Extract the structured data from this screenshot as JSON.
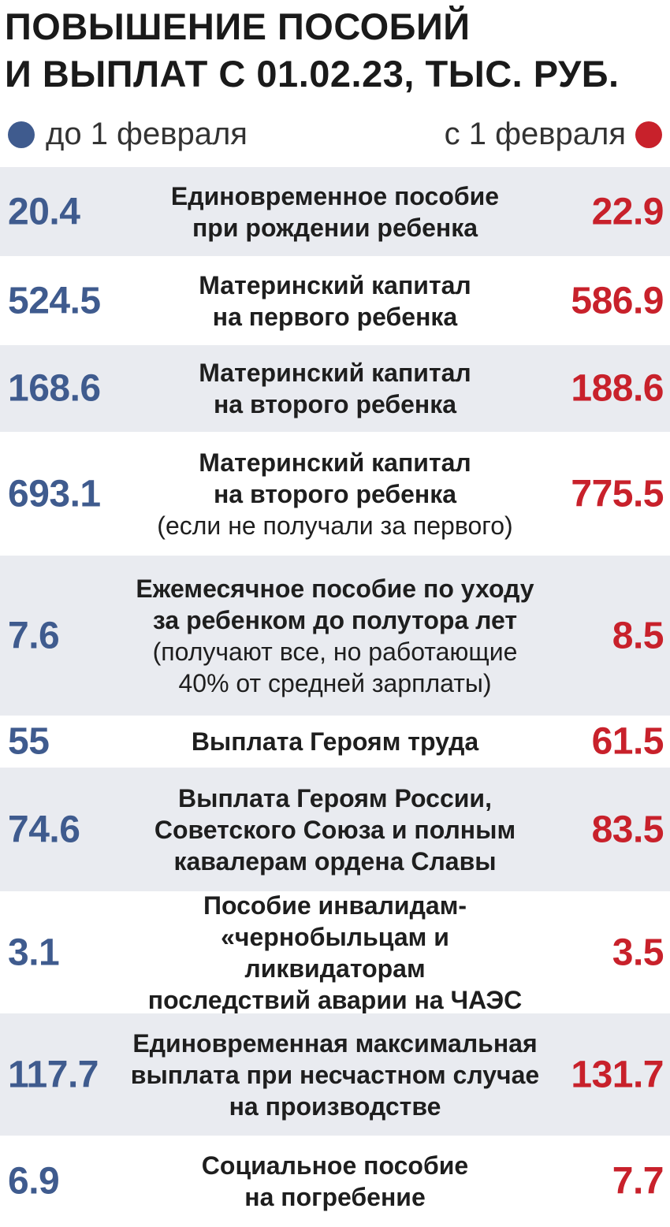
{
  "colors": {
    "before": "#3f5b8e",
    "after": "#c8212b",
    "row_shade": "#e9ebf0"
  },
  "title_lines": [
    "ПОВЫШЕНИЕ ПОСОБИЙ",
    "И ВЫПЛАТ С 01.02.23, ТЫС. РУБ."
  ],
  "legend": {
    "before": "до 1 февраля",
    "after": "с 1 февраля"
  },
  "chart_data": {
    "type": "table",
    "title": "ПОВЫШЕНИЕ ПОСОБИЙ И ВЫПЛАТ С 01.02.23, ТЫС. РУБ.",
    "columns": [
      "до 1 февраля",
      "с 1 февраля"
    ],
    "rows": [
      {
        "label": "Единовременное пособие\nпри рождении ребенка",
        "note": "",
        "before": "20.4",
        "after": "22.9"
      },
      {
        "label": "Материнский капитал\nна первого ребенка",
        "note": "",
        "before": "524.5",
        "after": "586.9"
      },
      {
        "label": "Материнский капитал\nна второго ребенка",
        "note": "",
        "before": "168.6",
        "after": "188.6"
      },
      {
        "label": "Материнский капитал\nна второго ребенка",
        "note": "(если не получали за первого)",
        "before": "693.1",
        "after": "775.5"
      },
      {
        "label": "Ежемесячное пособие по уходу\nза ребенком до полутора лет",
        "note": "(получают все, но работающие\n40% от средней зарплаты)",
        "before": "7.6",
        "after": "8.5"
      },
      {
        "label": "Выплата Героям труда",
        "note": "",
        "before": "55",
        "after": "61.5"
      },
      {
        "label": "Выплата Героям России,\nСоветского Союза и полным\nкавалерам ордена Славы",
        "note": "",
        "before": "74.6",
        "after": "83.5"
      },
      {
        "label": "Пособие инвалидам-\n«чернобыльцам и ликвидаторам\nпоследствий аварии на ЧАЭС",
        "note": "",
        "before": "3.1",
        "after": "3.5"
      },
      {
        "label": "Единовременная максимальная\nвыплата при несчастном случае\nна производстве",
        "note": "",
        "before": "117.7",
        "after": "131.7"
      },
      {
        "label": "Социальное пособие\nна погребение",
        "note": "",
        "before": "6.9",
        "after": "7.7"
      }
    ]
  }
}
